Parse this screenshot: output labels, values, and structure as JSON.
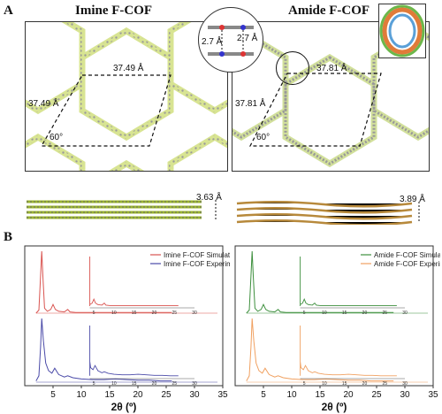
{
  "panel_a": {
    "letter": "A",
    "imine": {
      "title": "Imine F-COF",
      "lattice_top": "37.49 Å",
      "lattice_left": "37.49 Å",
      "angle": "60°",
      "stacking": "3.63 Å"
    },
    "amide": {
      "title": "Amide F-COF",
      "lattice_top": "37.81 Å",
      "lattice_left": "37.81 Å",
      "angle": "60°",
      "stacking": "3.89 Å",
      "hbond_left": "2.7 Å",
      "hbond_right": "2.7 Å"
    }
  },
  "panel_b": {
    "letter": "B",
    "colors": {
      "imine_sim": "#d9534f",
      "imine_exp": "#4a4aa8",
      "amide_sim": "#3d8f3d",
      "amide_exp": "#f0a060"
    }
  },
  "chart_data": [
    {
      "type": "line",
      "xlabel": "2θ (º)",
      "xlim": [
        0,
        35
      ],
      "xticks": [
        "5",
        "10",
        "15",
        "20",
        "25",
        "30",
        "35"
      ],
      "series": [
        {
          "name": "Imine F-COF Simulated",
          "x": [
            2,
            2.5,
            2.8,
            3.0,
            3.2,
            3.5,
            4,
            4.6,
            5.0,
            5.4,
            6,
            7,
            7.6,
            8,
            9,
            10,
            12,
            15,
            20,
            25,
            26
          ],
          "y": [
            0,
            5,
            60,
            100,
            60,
            8,
            3,
            6,
            14,
            6,
            3,
            2,
            6,
            2,
            1,
            1,
            1,
            1,
            1,
            1,
            1
          ]
        },
        {
          "name": "Imine F-COF Experimental",
          "x": [
            2,
            2.5,
            2.8,
            3.0,
            3.3,
            3.7,
            4.2,
            4.8,
            5.3,
            6,
            7,
            7.6,
            8.5,
            10,
            12,
            14,
            16,
            18,
            20,
            22,
            24,
            26
          ],
          "y": [
            2,
            10,
            55,
            100,
            65,
            30,
            18,
            14,
            22,
            12,
            8,
            10,
            7,
            5,
            4,
            4,
            5,
            4,
            3,
            3,
            2,
            2
          ]
        }
      ],
      "insets": [
        {
          "xticks": [
            "5",
            "10",
            "15",
            "20",
            "25",
            "30"
          ]
        },
        {
          "xticks": [
            "5",
            "10",
            "15",
            "20",
            "25",
            "30"
          ]
        }
      ]
    },
    {
      "type": "line",
      "xlabel": "2θ (º)",
      "xlim": [
        0,
        35
      ],
      "xticks": [
        "5",
        "10",
        "15",
        "20",
        "25",
        "30",
        "35"
      ],
      "series": [
        {
          "name": "Amide F-COF Simulated",
          "x": [
            2,
            2.5,
            2.8,
            3.0,
            3.2,
            3.5,
            4,
            4.6,
            5.0,
            5.4,
            6,
            7,
            7.6,
            8,
            9,
            10,
            12,
            15,
            20,
            25,
            28
          ],
          "y": [
            0,
            5,
            60,
            100,
            60,
            8,
            3,
            6,
            14,
            6,
            3,
            2,
            6,
            2,
            1,
            1,
            1,
            1,
            1,
            1,
            1
          ]
        },
        {
          "name": "Amide F-COF Experimental",
          "x": [
            2,
            2.5,
            2.8,
            3.0,
            3.3,
            3.7,
            4.2,
            4.8,
            5.3,
            6,
            7,
            7.6,
            8.5,
            10,
            12,
            14,
            16,
            18,
            20,
            22,
            24,
            26,
            28
          ],
          "y": [
            2,
            10,
            55,
            100,
            65,
            30,
            18,
            14,
            22,
            12,
            8,
            10,
            7,
            5,
            4,
            4,
            5,
            4,
            3,
            3,
            2,
            2,
            2
          ]
        }
      ],
      "insets": [
        {
          "xticks": [
            "5",
            "10",
            "15",
            "20",
            "25",
            "30"
          ]
        },
        {
          "xticks": [
            "5",
            "10",
            "15",
            "20",
            "25",
            "30"
          ]
        }
      ]
    }
  ]
}
